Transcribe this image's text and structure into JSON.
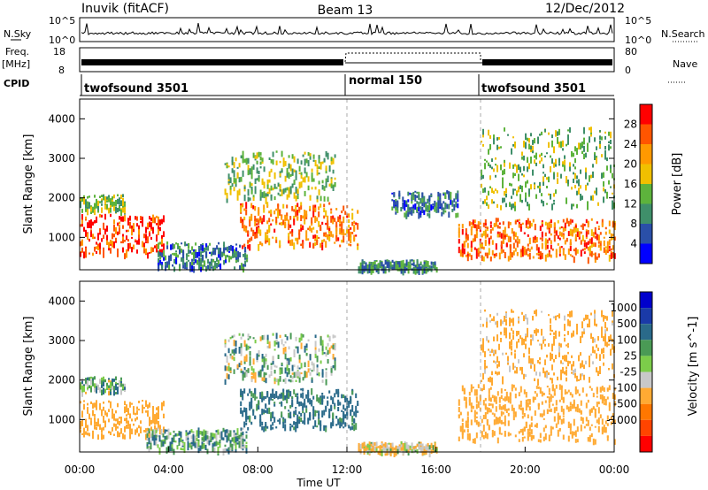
{
  "header": {
    "station": "Inuvik (fitACF)",
    "beam": "Beam 13",
    "date": "12/Dec/2012"
  },
  "colors": {
    "power": [
      "#0000ff",
      "#2a4fa8",
      "#3f8f6a",
      "#5db33c",
      "#f0c000",
      "#ff9900",
      "#ff5500",
      "#ff0000"
    ],
    "velocity": [
      "#ff0000",
      "#ff4400",
      "#ff7700",
      "#ffaa33",
      "#c8c8c8",
      "#7ccc4a",
      "#4a9a55",
      "#2a6a8a",
      "#1a3aa8",
      "#0000cc"
    ],
    "ground_scatter": "#c8c8c8"
  },
  "chart_data": [
    {
      "type": "line",
      "panel": "noise / search",
      "left_label": "N.Sky",
      "left_ticks": [
        "10^5",
        "10^0"
      ],
      "right_label": "N.Search",
      "right_ticks": [
        "10^5",
        "10^0"
      ],
      "note": "noise level timeseries, mostly near 10^1 with sparse spikes"
    },
    {
      "type": "line",
      "panel": "frequency / nave",
      "left_label_top": "Freq.",
      "left_label_bottom": "[MHz]",
      "left_ticks": [
        "18",
        "8"
      ],
      "right_label": "Nave",
      "right_ticks": [
        "80",
        "0"
      ],
      "nave_segments": [
        {
          "x": [
            0,
            12
          ],
          "value": 26
        },
        {
          "x": [
            12,
            18
          ],
          "value": 80
        },
        {
          "x": [
            18,
            24
          ],
          "value": 26
        }
      ],
      "frequency_mhz": 10.5
    },
    {
      "type": "table",
      "panel": "CPID",
      "label": "CPID",
      "segments": [
        {
          "start_hour": 0,
          "end_hour": 12,
          "name": "twofsound 3501"
        },
        {
          "start_hour": 12,
          "end_hour": 18,
          "name": "normal 150"
        },
        {
          "start_hour": 18,
          "end_hour": 24,
          "name": "twofsound 3501"
        }
      ]
    },
    {
      "type": "heatmap",
      "panel": "power",
      "ylabel": "Slant Range [km]",
      "ylim": [
        180,
        4500
      ],
      "yticks": [
        1000,
        2000,
        3000,
        4000
      ],
      "xlim": [
        0,
        24
      ],
      "colorbar_label": "Power [dB]",
      "colorbar_ticks": [
        4,
        8,
        12,
        16,
        20,
        24,
        28
      ],
      "colorbar_range": [
        0,
        32
      ],
      "echo_regions": [
        {
          "t": [
            0.0,
            3.8
          ],
          "range_km": [
            600,
            1600
          ],
          "level_db": 27
        },
        {
          "t": [
            0.0,
            2.0
          ],
          "range_km": [
            1700,
            2100
          ],
          "level_db": 14
        },
        {
          "t": [
            3.5,
            7.5
          ],
          "range_km": [
            250,
            900
          ],
          "level_db": 9
        },
        {
          "t": [
            7.2,
            12.5
          ],
          "range_km": [
            800,
            1900
          ],
          "level_db": 24
        },
        {
          "t": [
            6.5,
            11.5
          ],
          "range_km": [
            2000,
            3200
          ],
          "level_db": 14
        },
        {
          "t": [
            12.5,
            16.0
          ],
          "range_km": [
            200,
            450
          ],
          "level_db": 10
        },
        {
          "t": [
            14.0,
            17.0
          ],
          "range_km": [
            1600,
            2200
          ],
          "level_db": 8
        },
        {
          "t": [
            17.0,
            24.0
          ],
          "range_km": [
            500,
            1500
          ],
          "level_db": 25
        },
        {
          "t": [
            18.0,
            24.0
          ],
          "range_km": [
            1800,
            3800
          ],
          "level_db": 14
        }
      ]
    },
    {
      "type": "heatmap",
      "panel": "velocity",
      "ylabel": "Slant Range [km]",
      "ylim": [
        180,
        4500
      ],
      "yticks": [
        1000,
        2000,
        3000,
        4000
      ],
      "xlim": [
        0,
        24
      ],
      "xlabel": "Time UT",
      "xticks": [
        "00:00",
        "04:00",
        "08:00",
        "12:00",
        "16:00",
        "20:00",
        "00:00"
      ],
      "colorbar_label": "Velocity [m s^-1]",
      "colorbar_ticks": [
        1000,
        500,
        100,
        25,
        -25,
        -100,
        -500,
        -1000
      ],
      "echo_regions": [
        {
          "t": [
            0.0,
            3.8
          ],
          "range_km": [
            600,
            1500
          ],
          "velocity": -300
        },
        {
          "t": [
            0.0,
            2.0
          ],
          "range_km": [
            1700,
            2100
          ],
          "velocity": 0
        },
        {
          "t": [
            3.0,
            7.5
          ],
          "range_km": [
            250,
            800
          ],
          "velocity": 50
        },
        {
          "t": [
            7.2,
            12.5
          ],
          "range_km": [
            800,
            1800
          ],
          "velocity": 200
        },
        {
          "t": [
            6.5,
            11.5
          ],
          "range_km": [
            2000,
            3200
          ],
          "velocity": 0
        },
        {
          "t": [
            12.5,
            16.0
          ],
          "range_km": [
            200,
            450
          ],
          "velocity": -100
        },
        {
          "t": [
            17.0,
            24.0
          ],
          "range_km": [
            500,
            1900
          ],
          "velocity": -300
        },
        {
          "t": [
            18.0,
            24.0
          ],
          "range_km": [
            2000,
            3800
          ],
          "velocity": -200
        }
      ]
    }
  ]
}
